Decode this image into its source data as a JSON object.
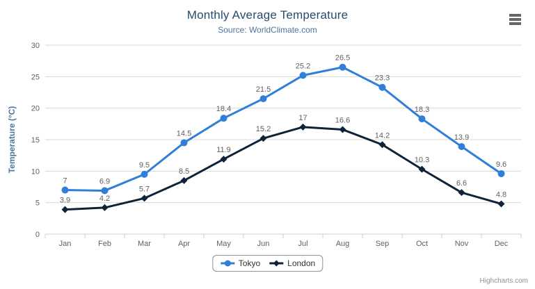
{
  "header": {
    "title": "Monthly Average Temperature",
    "subtitle": "Source: WorldClimate.com"
  },
  "menu": {
    "icon": "hamburger-menu-icon"
  },
  "credits": {
    "label": "Highcharts.com"
  },
  "chart_data": {
    "type": "line",
    "title": "Monthly Average Temperature",
    "subtitle": "Source: WorldClimate.com",
    "xlabel": "",
    "ylabel": "Temperature (°C)",
    "ylim": [
      0,
      30
    ],
    "ytick_interval": 5,
    "grid": true,
    "legend_position": "bottom",
    "data_labels": true,
    "categories": [
      "Jan",
      "Feb",
      "Mar",
      "Apr",
      "May",
      "Jun",
      "Jul",
      "Aug",
      "Sep",
      "Oct",
      "Nov",
      "Dec"
    ],
    "series": [
      {
        "name": "Tokyo",
        "color": "#2f7ed8",
        "marker": "circle",
        "values": [
          7,
          6.9,
          9.5,
          14.5,
          18.4,
          21.5,
          25.2,
          26.5,
          23.3,
          18.3,
          13.9,
          9.6
        ]
      },
      {
        "name": "London",
        "color": "#0d233a",
        "marker": "diamond",
        "values": [
          3.9,
          4.2,
          5.7,
          8.5,
          11.9,
          15.2,
          17,
          16.6,
          14.2,
          10.3,
          6.6,
          4.8
        ]
      }
    ],
    "colors": {
      "title": "#274b6d",
      "subtitle": "#4d759e",
      "axis_title": "#4d759e",
      "axis_label": "#606060",
      "data_label": "#606060",
      "grid_line": "#d8d8d8",
      "axis_line": "#c0d0e0",
      "tick": "#c0d0e0",
      "legend_border": "#909090",
      "legend_text": "#333333",
      "credits": "#909090",
      "menu_icon": "#666666"
    }
  }
}
